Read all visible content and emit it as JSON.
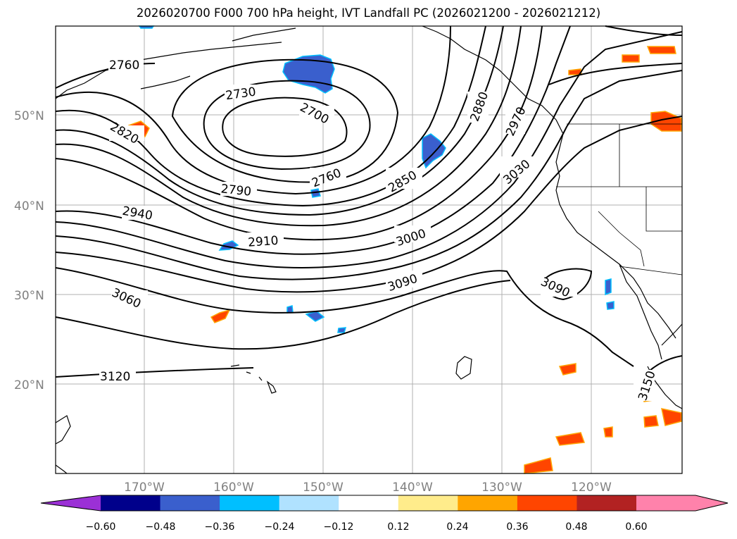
{
  "title": "2026020700 F000 700 hPa height, IVT Landfall PC (2026021200 - 2026021212)",
  "map": {
    "lat_labels": [
      "50°N",
      "40°N",
      "30°N",
      "20°N"
    ],
    "lon_labels": [
      "170°W",
      "160°W",
      "150°W",
      "140°W",
      "130°W",
      "120°W"
    ],
    "contour_labels": [
      "2760",
      "2730",
      "2700",
      "2820",
      "2880",
      "2970",
      "2760",
      "2850",
      "3030",
      "2790",
      "2940",
      "2910",
      "3000",
      "3090",
      "3090",
      "3060",
      "3120",
      "3150"
    ]
  },
  "colorbar": {
    "ticks": [
      "−0.60",
      "−0.48",
      "−0.36",
      "−0.24",
      "−0.12",
      "0.12",
      "0.24",
      "0.36",
      "0.48",
      "0.60"
    ],
    "colors": [
      "#9b30d6",
      "#00008b",
      "#3a5fcd",
      "#00bfff",
      "#b0e2ff",
      "#ffffff",
      "#ffec8b",
      "#ffa500",
      "#ff4500",
      "#b22222",
      "#ff82ab"
    ]
  },
  "colors": {
    "negative": "#3a5fcd",
    "positive": "#ff4500",
    "grid": "#b0b0b0",
    "axis_text": "#808080"
  }
}
